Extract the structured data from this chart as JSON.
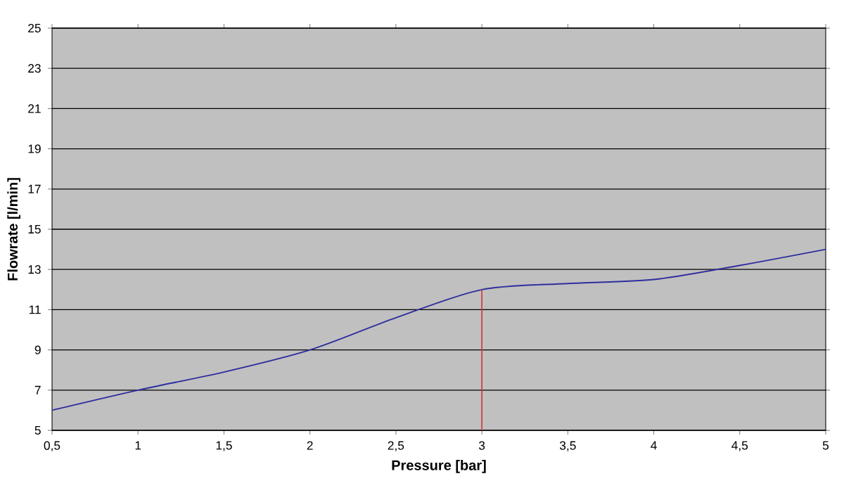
{
  "chart_data": {
    "type": "line",
    "xlabel": "Pressure [bar]",
    "ylabel": "Flowrate [l/min]",
    "x": [
      0.5,
      1,
      1.5,
      2,
      2.5,
      3,
      3.5,
      4,
      4.5,
      5
    ],
    "series": [
      {
        "color": "#2e2e9e",
        "values": [
          6,
          7,
          7.9,
          9,
          10.6,
          12,
          12.3,
          12.5,
          13.2,
          14
        ]
      }
    ],
    "xlim": [
      0.5,
      5
    ],
    "xticks": [
      {
        "value": 0.5,
        "label": "0,5"
      },
      1,
      {
        "value": 1.5,
        "label": "1,5"
      },
      2,
      {
        "value": 2.5,
        "label": "2,5"
      },
      3,
      {
        "value": 3.5,
        "label": "3,5"
      },
      4,
      {
        "value": 4.5,
        "label": "4,5"
      },
      5
    ],
    "ylim": [
      5,
      25
    ],
    "yticks": [
      5,
      7,
      9,
      11,
      13,
      15,
      17,
      19,
      21,
      23,
      25
    ],
    "grid": "y",
    "legend": false,
    "marker": "none",
    "line_style": "solid",
    "ref_lines": [
      {
        "axis": "x",
        "value": 3,
        "color": "#cc3333"
      }
    ]
  }
}
